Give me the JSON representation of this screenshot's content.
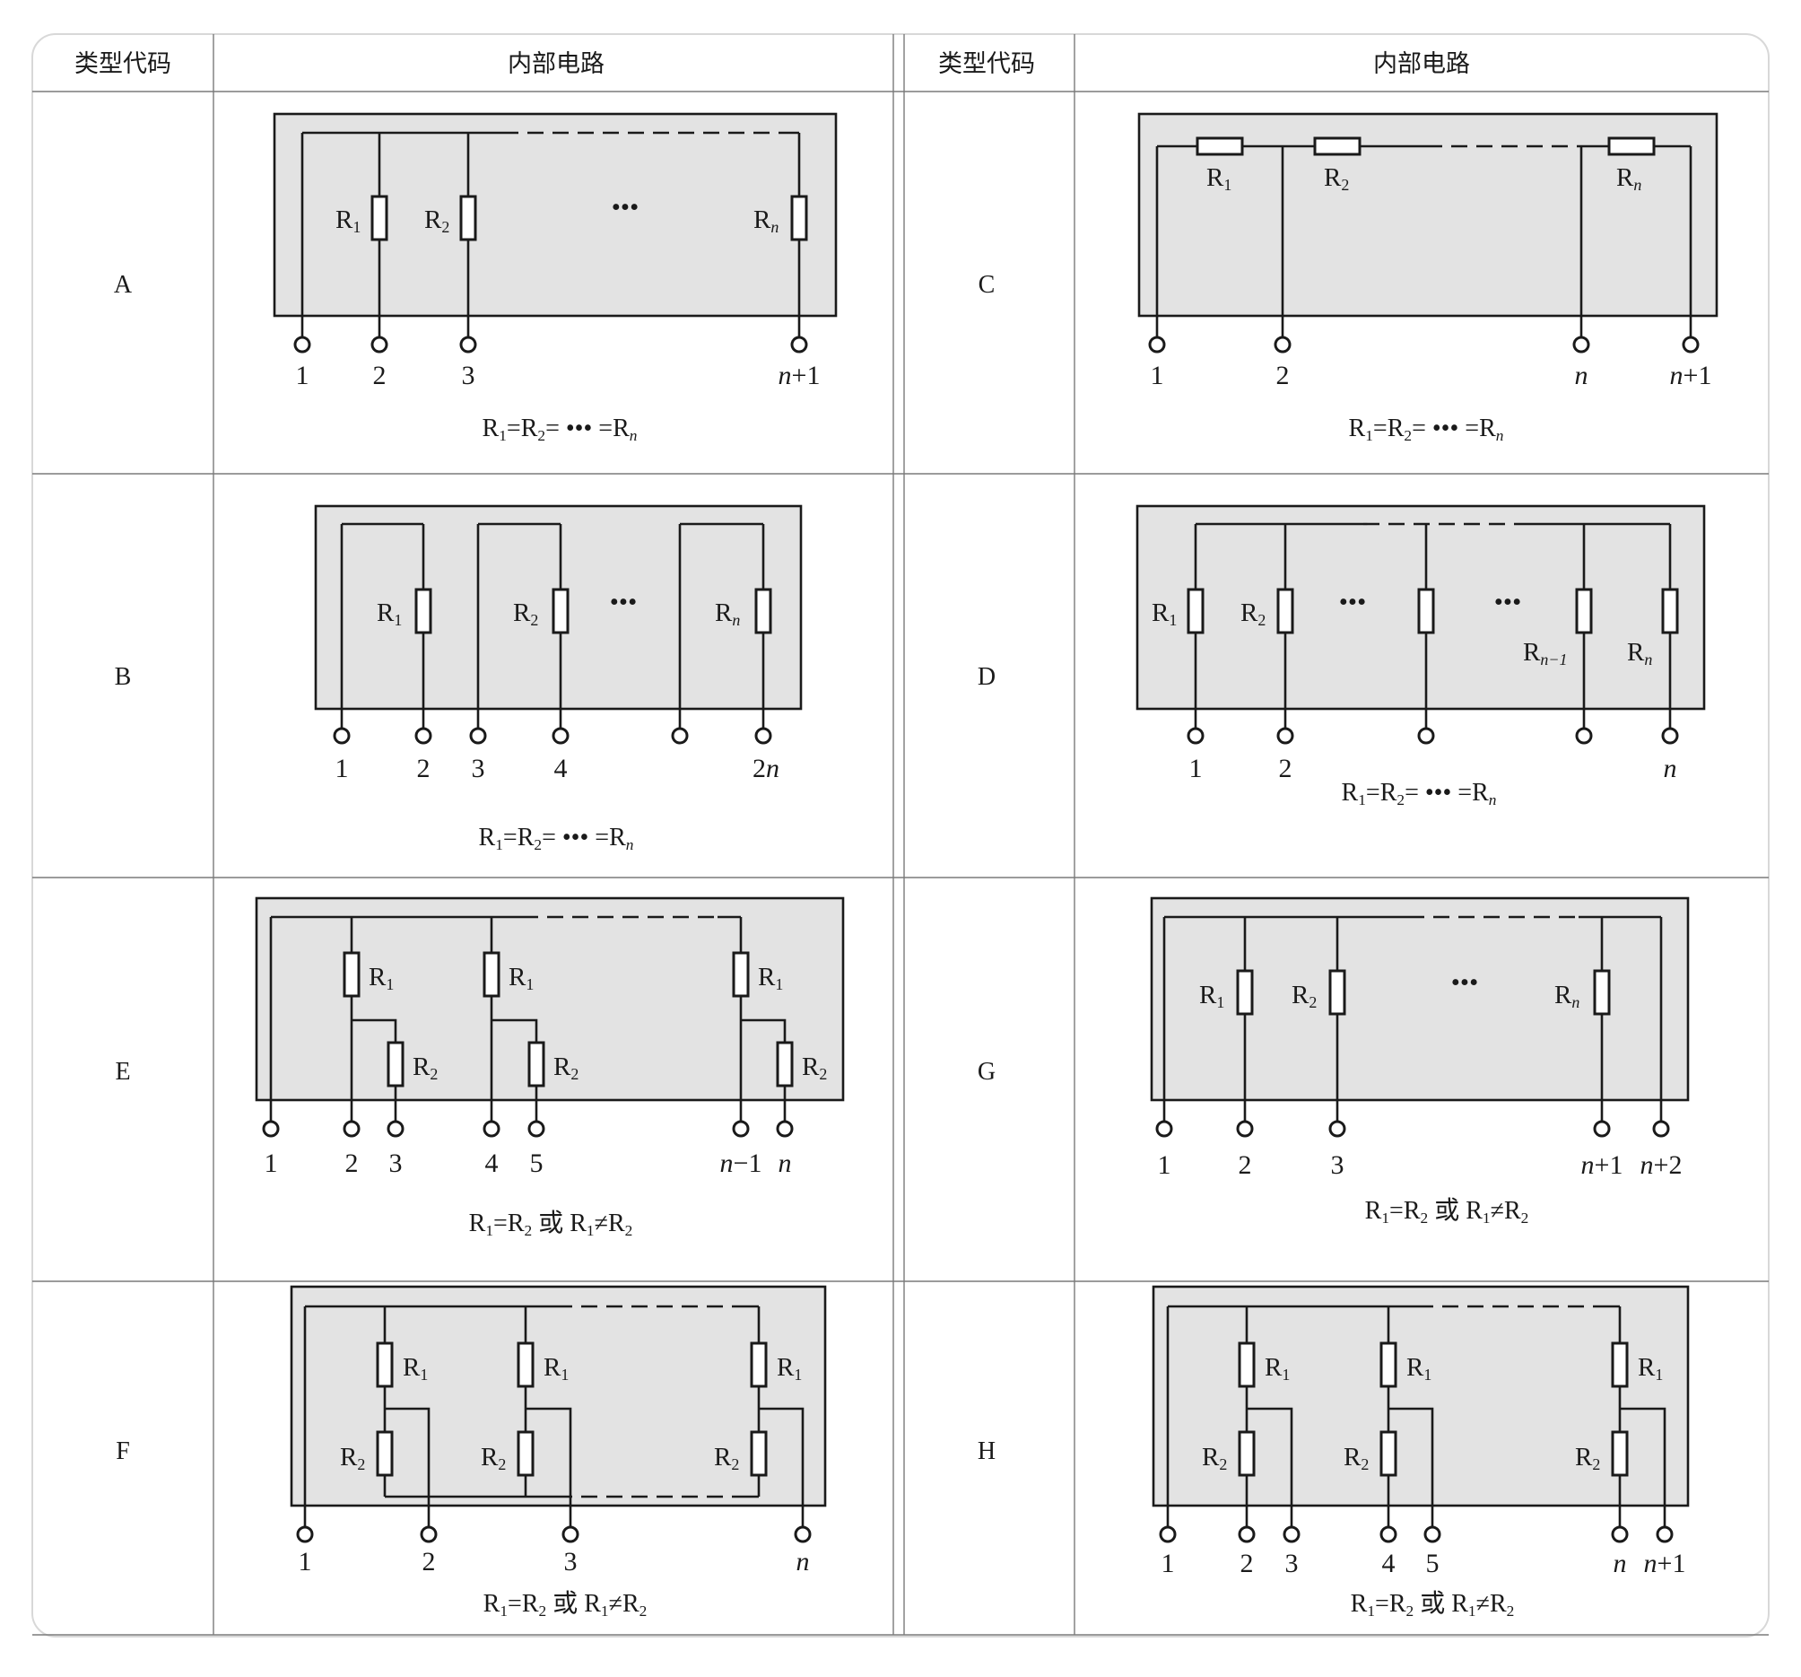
{
  "headers": {
    "left_code": "类型代码",
    "left_circuit": "内部电路",
    "right_code": "类型代码",
    "right_circuit": "内部电路"
  },
  "panels": {
    "A": {
      "code": "A",
      "labels": [
        "R1",
        "R2",
        "Rn"
      ],
      "dots": "•••",
      "terminals": [
        "1",
        "2",
        "3",
        "n+1"
      ],
      "equation": "R1=R2= ••• =Rn"
    },
    "B": {
      "code": "B",
      "labels": [
        "R1",
        "R2",
        "Rn"
      ],
      "dots": "•••",
      "terminals": [
        "1",
        "2",
        "3",
        "4",
        "2n"
      ],
      "equation": "R1=R2= ••• =Rn"
    },
    "C": {
      "code": "C",
      "labels": [
        "R1",
        "R2",
        "Rn"
      ],
      "terminals": [
        "1",
        "2",
        "n",
        "n+1"
      ],
      "equation": "R1=R2= ••• =Rn"
    },
    "D": {
      "code": "D",
      "labels": [
        "R1",
        "R2",
        "Rn−1",
        "Rn"
      ],
      "dots": "•••",
      "terminals": [
        "1",
        "2",
        "n"
      ],
      "equation": "R1=R2= ••• =Rn"
    },
    "E": {
      "code": "E",
      "labels": [
        "R1",
        "R2"
      ],
      "terminals": [
        "1",
        "2",
        "3",
        "4",
        "5",
        "n−1",
        "n"
      ],
      "equation": "R1=R2 或 R1≠R2"
    },
    "F": {
      "code": "F",
      "labels": [
        "R1",
        "R2"
      ],
      "terminals": [
        "1",
        "2",
        "3",
        "n"
      ],
      "equation": "R1=R2 或 R1≠R2"
    },
    "G": {
      "code": "G",
      "labels": [
        "R1",
        "R2",
        "Rn"
      ],
      "dots": "•••",
      "terminals": [
        "1",
        "2",
        "3",
        "n+1",
        "n+2"
      ],
      "equation": "R1=R2 或 R1≠R2"
    },
    "H": {
      "code": "H",
      "labels": [
        "R1",
        "R2"
      ],
      "terminals": [
        "1",
        "2",
        "3",
        "4",
        "5",
        "n",
        "n+1"
      ],
      "equation": "R1=R2 或 R1≠R2"
    }
  }
}
